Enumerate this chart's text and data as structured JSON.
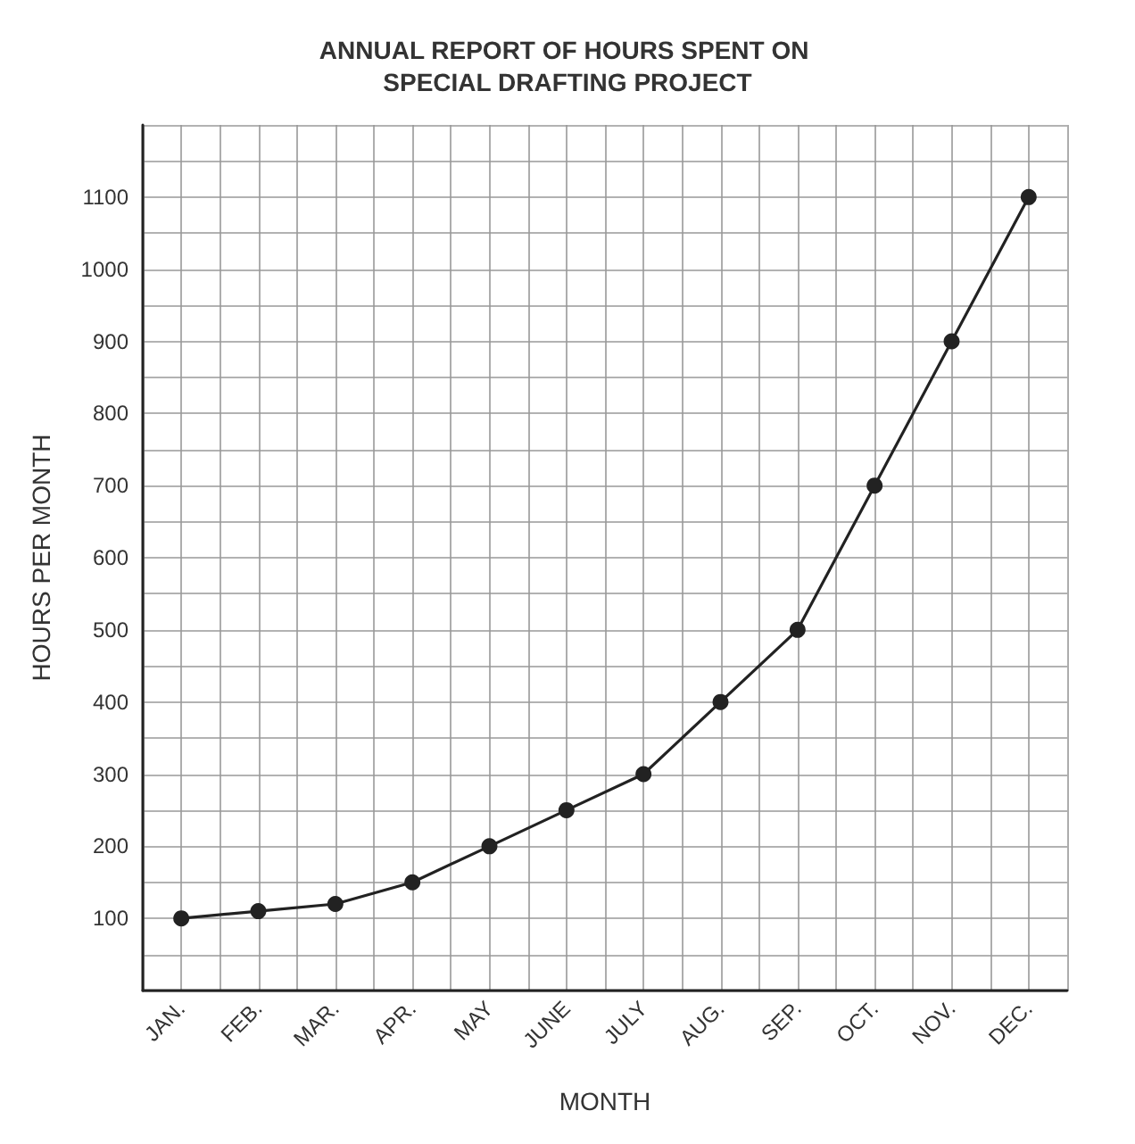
{
  "chart_data": {
    "type": "line",
    "title": "ANNUAL REPORT OF HOURS SPENT ON SPECIAL DRAFTING PROJECT",
    "xlabel": "MONTH",
    "ylabel": "HOURS PER MONTH",
    "categories": [
      "JAN.",
      "FEB.",
      "MAR.",
      "APR.",
      "MAY",
      "JUNE",
      "JULY",
      "AUG.",
      "SEP.",
      "OCT.",
      "NOV.",
      "DEC."
    ],
    "series": [
      {
        "color": "#222222",
        "values": [
          100,
          110,
          120,
          150,
          200,
          250,
          300,
          400,
          500,
          700,
          900,
          1100
        ]
      }
    ],
    "ylim": [
      0,
      1200
    ],
    "yticks": [
      {
        "value": 0,
        "label": null
      },
      {
        "value": 50,
        "label": null
      },
      100,
      {
        "value": 150,
        "label": null
      },
      200,
      {
        "value": 250,
        "label": null
      },
      300,
      {
        "value": 350,
        "label": null
      },
      400,
      {
        "value": 450,
        "label": null
      },
      500,
      {
        "value": 550,
        "label": null
      },
      600,
      {
        "value": 650,
        "label": null
      },
      700,
      {
        "value": 750,
        "label": null
      },
      800,
      {
        "value": 850,
        "label": null
      },
      900,
      {
        "value": 950,
        "label": null
      },
      1000,
      {
        "value": 1050,
        "label": null
      },
      1100,
      {
        "value": 1150,
        "label": null
      },
      {
        "value": 1200,
        "label": null
      }
    ],
    "grid": true,
    "marker": "circle",
    "line_style": "solid"
  }
}
